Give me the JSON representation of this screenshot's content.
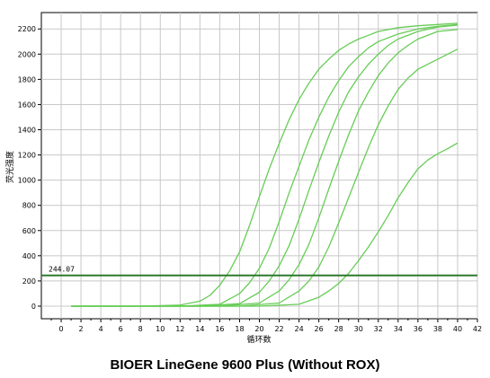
{
  "chart_data": {
    "type": "line",
    "title": "",
    "xlabel": "循环数",
    "ylabel": "荧光强度",
    "xlim": [
      -2,
      42
    ],
    "ylim": [
      -100,
      2330
    ],
    "x_ticks": [
      0,
      2,
      4,
      6,
      8,
      10,
      12,
      14,
      16,
      18,
      20,
      22,
      24,
      26,
      28,
      30,
      32,
      34,
      36,
      38,
      40,
      42
    ],
    "y_ticks": [
      0,
      200,
      400,
      600,
      800,
      1000,
      1200,
      1400,
      1600,
      1800,
      2000,
      2200
    ],
    "grid": true,
    "line_color": "#66cc55",
    "threshold": {
      "value": 244.07,
      "label": "244.07",
      "color": "#2f7a2f"
    },
    "series": [
      {
        "x": [
          1,
          8,
          12,
          14,
          15,
          16,
          17,
          18,
          19,
          20,
          21,
          22,
          23,
          24,
          25,
          26,
          27,
          28,
          29,
          30,
          31,
          32,
          34,
          36,
          38,
          40
        ],
        "y": [
          0,
          0,
          8,
          40,
          85,
          165,
          280,
          430,
          640,
          870,
          1090,
          1290,
          1480,
          1640,
          1770,
          1880,
          1960,
          2030,
          2080,
          2120,
          2150,
          2180,
          2210,
          2225,
          2235,
          2245
        ]
      },
      {
        "x": [
          1,
          12,
          16,
          18,
          19,
          20,
          21,
          22,
          23,
          24,
          25,
          26,
          27,
          28,
          29,
          30,
          31,
          32,
          34,
          36,
          38,
          40
        ],
        "y": [
          0,
          0,
          15,
          100,
          185,
          300,
          460,
          670,
          900,
          1110,
          1320,
          1500,
          1660,
          1790,
          1900,
          1980,
          2050,
          2100,
          2160,
          2200,
          2220,
          2235
        ]
      },
      {
        "x": [
          1,
          14,
          18,
          20,
          21,
          22,
          23,
          24,
          25,
          26,
          27,
          28,
          29,
          30,
          31,
          32,
          33,
          34,
          36,
          38,
          40
        ],
        "y": [
          0,
          0,
          20,
          110,
          200,
          320,
          480,
          690,
          920,
          1140,
          1350,
          1540,
          1700,
          1820,
          1920,
          2000,
          2070,
          2120,
          2180,
          2215,
          2230
        ]
      },
      {
        "x": [
          1,
          16,
          20,
          22,
          23,
          24,
          25,
          26,
          27,
          28,
          29,
          30,
          31,
          32,
          33,
          34,
          35,
          36,
          38,
          40
        ],
        "y": [
          0,
          0,
          25,
          120,
          210,
          330,
          490,
          700,
          930,
          1150,
          1360,
          1550,
          1700,
          1830,
          1930,
          2010,
          2070,
          2120,
          2180,
          2195
        ]
      },
      {
        "x": [
          1,
          18,
          22,
          24,
          25,
          26,
          27,
          28,
          29,
          30,
          31,
          32,
          33,
          34,
          35,
          36,
          38,
          40
        ],
        "y": [
          0,
          0,
          25,
          120,
          200,
          310,
          470,
          660,
          860,
          1060,
          1260,
          1440,
          1590,
          1720,
          1810,
          1880,
          1960,
          2040
        ]
      },
      {
        "x": [
          1,
          20,
          24,
          26,
          27,
          28,
          29,
          30,
          31,
          32,
          33,
          34,
          35,
          36,
          37,
          38,
          39,
          40
        ],
        "y": [
          0,
          0,
          15,
          70,
          120,
          180,
          260,
          360,
          470,
          590,
          720,
          860,
          980,
          1090,
          1160,
          1210,
          1250,
          1295
        ]
      }
    ]
  },
  "caption": "BIOER LineGene 9600 Plus  (Without ROX)"
}
